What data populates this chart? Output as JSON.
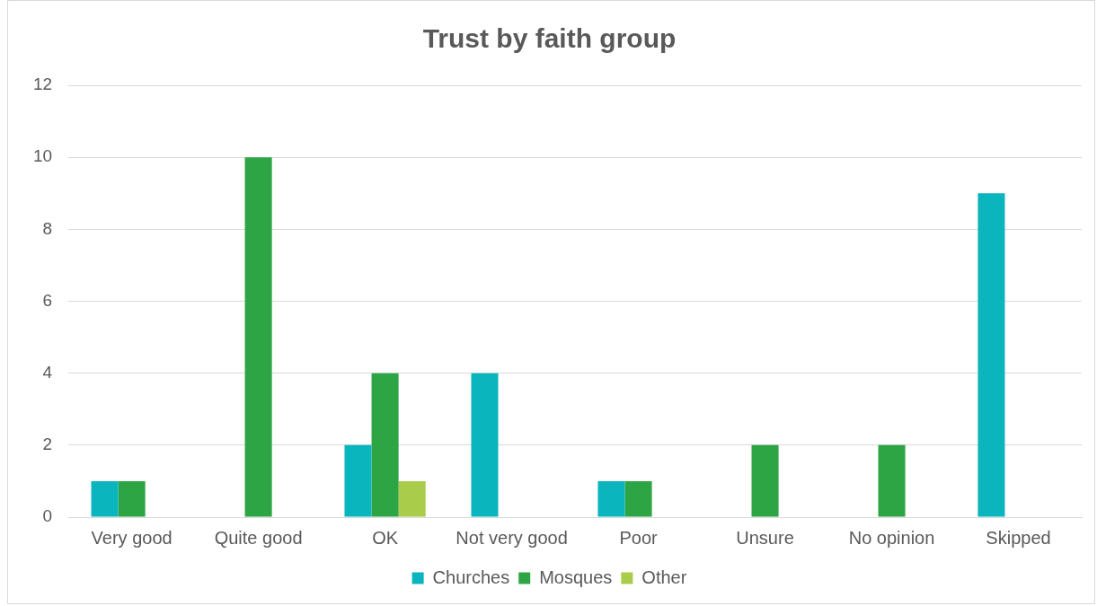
{
  "chart_data": {
    "type": "bar",
    "title": "Trust by faith group",
    "categories": [
      "Very good",
      "Quite good",
      "OK",
      "Not very good",
      "Poor",
      "Unsure",
      "No opinion",
      "Skipped"
    ],
    "series": [
      {
        "name": "Churches",
        "color": "#0bb5bd",
        "values": [
          1,
          0,
          2,
          4,
          1,
          0,
          0,
          9
        ]
      },
      {
        "name": "Mosques",
        "color": "#2ea545",
        "values": [
          1,
          10,
          4,
          0,
          1,
          2,
          2,
          0
        ]
      },
      {
        "name": "Other",
        "color": "#a9cc4a",
        "values": [
          0,
          0,
          1,
          0,
          0,
          0,
          0,
          0
        ]
      }
    ],
    "ylim": [
      0,
      12
    ],
    "yticks": [
      0,
      2,
      4,
      6,
      8,
      10,
      12
    ],
    "grid": "y",
    "legend": "bottom"
  }
}
